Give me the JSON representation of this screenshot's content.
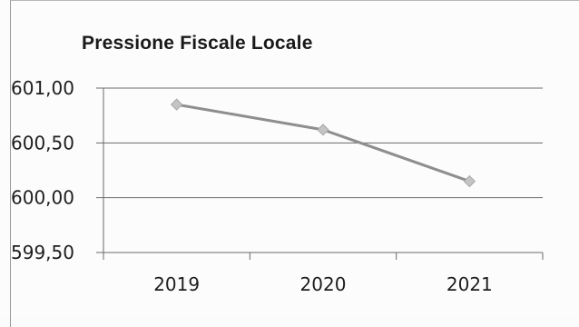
{
  "chart_data": {
    "type": "line",
    "title": "Pressione Fiscale Locale",
    "categories": [
      "2019",
      "2020",
      "2021"
    ],
    "series": [
      {
        "values": [
          600.85,
          600.62,
          600.15
        ]
      }
    ],
    "ylim": [
      599.5,
      601.0
    ],
    "yticks": [
      "601,00",
      "600,50",
      "600,00",
      "599,50"
    ],
    "ytick_values": [
      601.0,
      600.5,
      600.0,
      599.5
    ],
    "grid": true,
    "colors": {
      "line": "#8e8e8e",
      "marker": "#c4c4c4",
      "grid": "#6a6a6a"
    }
  }
}
